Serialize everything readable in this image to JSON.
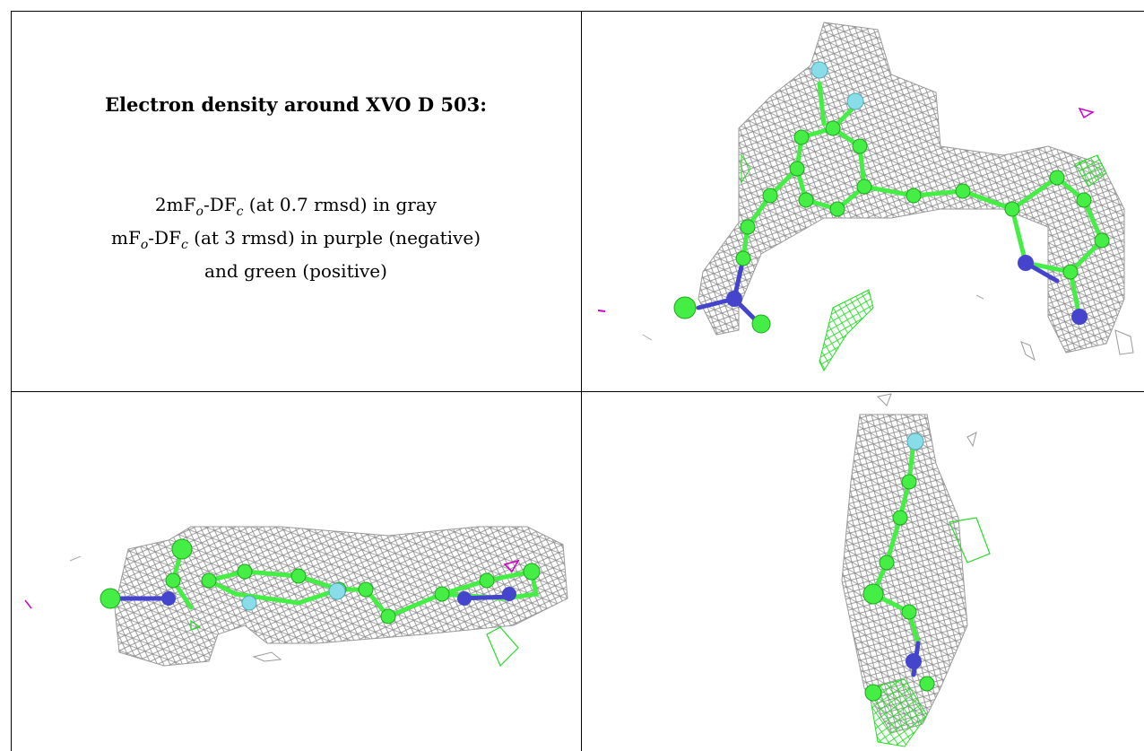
{
  "caption": {
    "title": "Electron density around XVO D 503:",
    "line1": {
      "prefix": "2mF",
      "sub_o": "o",
      "mid": "-DF",
      "sub_c": "c",
      "suffix": " (at 0.7 rmsd) in gray"
    },
    "line2": {
      "prefix": "mF",
      "sub_o": "o",
      "mid": "-DF",
      "sub_c": "c",
      "suffix": " (at 3 rmsd) in purple (negative)"
    },
    "line3": "and green (positive)"
  },
  "colors": {
    "mesh_2fofc": "#8a8a8a",
    "mesh_positive": "#22dd22",
    "mesh_negative": "#cc00cc",
    "carbon": "#44ee44",
    "nitrogen": "#4444cc",
    "fluorine": "#88dde8",
    "border": "#000000"
  }
}
